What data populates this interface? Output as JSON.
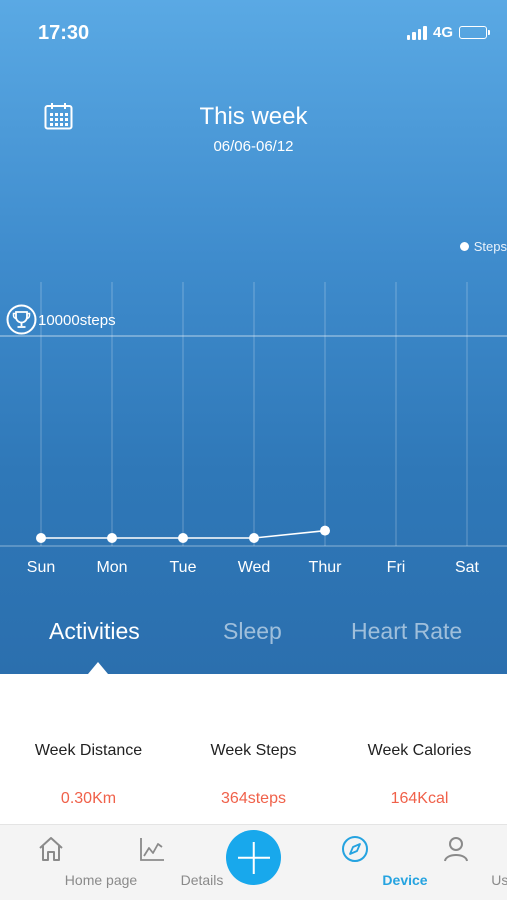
{
  "status": {
    "time": "17:30",
    "network": "4G"
  },
  "header": {
    "title": "This week",
    "date_range": "06/06-06/12"
  },
  "legend": {
    "label": "Steps"
  },
  "goal": {
    "label": "10000steps"
  },
  "chart_data": {
    "type": "line",
    "categories": [
      "Sun",
      "Mon",
      "Tue",
      "Wed",
      "Thur",
      "Fri",
      "Sat"
    ],
    "series": [
      {
        "name": "Steps",
        "values": [
          0,
          0,
          0,
          0,
          364,
          null,
          null
        ]
      }
    ],
    "goal_line": 10000,
    "ylim": [
      0,
      10500
    ],
    "grid": true,
    "legend_position": "top-right",
    "colors": {
      "line": "#ffffff",
      "grid": "rgba(255,255,255,0.3)"
    }
  },
  "tabs": [
    {
      "label": "Activities",
      "active": true
    },
    {
      "label": "Sleep",
      "active": false
    },
    {
      "label": "Heart Rate",
      "active": false
    }
  ],
  "stats": [
    {
      "label": "Week Distance",
      "value": "0.30Km"
    },
    {
      "label": "Week Steps",
      "value": "364steps"
    },
    {
      "label": "Week Calories",
      "value": "164Kcal"
    }
  ],
  "tabbar": {
    "items": [
      {
        "label": "Home page",
        "icon": "home-icon"
      },
      {
        "label": "Details",
        "icon": "chart-line-icon"
      },
      {
        "label": "",
        "icon": "plus-icon"
      },
      {
        "label": "Device",
        "icon": "compass-icon",
        "active": true
      },
      {
        "label": "User",
        "icon": "user-icon"
      }
    ]
  },
  "colors": {
    "accent": "#18a8ec",
    "value_red": "#f0614a",
    "header_top": "#5aa9e4",
    "header_bottom": "#2b6fae"
  }
}
